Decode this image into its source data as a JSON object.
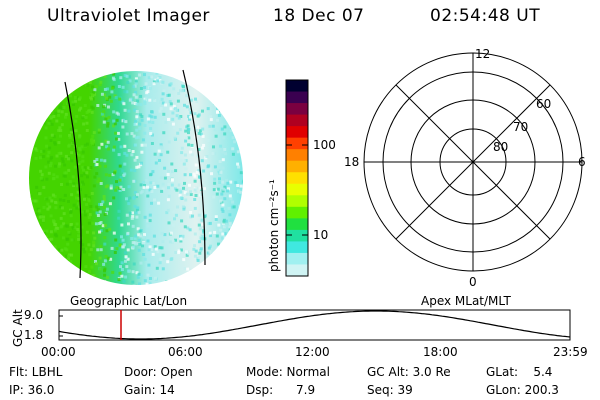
{
  "header": {
    "title": "Ultraviolet Imager",
    "date": "18 Dec 07",
    "time": "02:54:48 UT"
  },
  "colorbar": {
    "unit_label": "photon cm⁻²s⁻¹",
    "ticks": [
      "100",
      "10"
    ],
    "colors": [
      "#000030",
      "#3a0050",
      "#7a0040",
      "#b00020",
      "#e00000",
      "#ff4000",
      "#ff8000",
      "#ffb000",
      "#ffe000",
      "#e8ff00",
      "#b0ff00",
      "#60f000",
      "#20e040",
      "#20e0a0",
      "#40e8e0",
      "#a0f0f0",
      "#d0f4f4"
    ]
  },
  "labels": {
    "geographic": "Geographic Lat/Lon",
    "apex": "Apex MLat/MLT"
  },
  "polar": {
    "mlt_labels": {
      "top": "12",
      "left": "18",
      "right": "6",
      "bottom": "0"
    },
    "mlat_labels": [
      "60",
      "70",
      "80"
    ]
  },
  "altitude_plot": {
    "ylabel": "GC Alt",
    "y_ticks": [
      "9.0",
      "1.8"
    ],
    "x_ticks": [
      "00:00",
      "06:00",
      "12:00",
      "18:00",
      "23:59"
    ],
    "current_time_marker": "02:54"
  },
  "info": {
    "flt": "Flt: LBHL",
    "door": "Door: Open",
    "mode": "Mode: Normal",
    "gc_alt": "GC Alt: 3.0 Re",
    "glat": "GLat:    5.4",
    "ip": "IP: 36.0",
    "gain": "Gain: 14",
    "dsp": "Dsp:      7.9",
    "seq": "Seq: 39",
    "glon": "GLon: 200.3"
  },
  "accent_colors": {
    "marker": "#cc0000",
    "green": "#44d400",
    "cyan": "#7fe8e8"
  }
}
